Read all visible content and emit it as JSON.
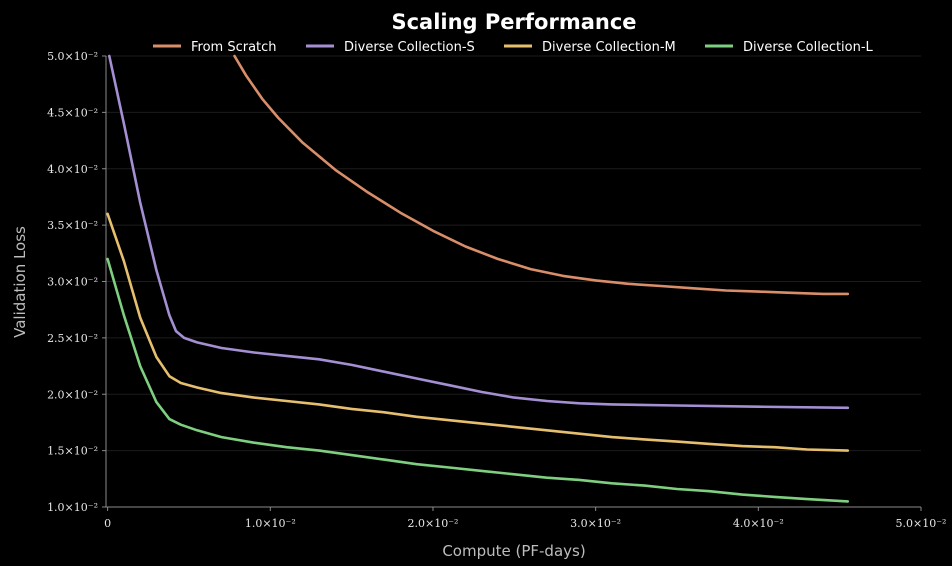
{
  "chart_data": {
    "type": "line",
    "title": "Scaling Performance",
    "xlabel": "Compute (PF-days)",
    "ylabel": "Validation Loss",
    "xlim": [
      -0.0001,
      0.05
    ],
    "ylim": [
      0.01,
      0.05
    ],
    "grid": true,
    "legend_position": "top",
    "x_ticks": [
      {
        "value": 0,
        "label": "0"
      },
      {
        "value": 0.01,
        "label": "1.0×10⁻²"
      },
      {
        "value": 0.02,
        "label": "2.0×10⁻²"
      },
      {
        "value": 0.03,
        "label": "3.0×10⁻²"
      },
      {
        "value": 0.04,
        "label": "4.0×10⁻²"
      },
      {
        "value": 0.05,
        "label": "5.0×10⁻²"
      }
    ],
    "y_ticks": [
      {
        "value": 0.01,
        "label": "1.0×10⁻²"
      },
      {
        "value": 0.015,
        "label": "1.5×10⁻²"
      },
      {
        "value": 0.02,
        "label": "2.0×10⁻²"
      },
      {
        "value": 0.025,
        "label": "2.5×10⁻²"
      },
      {
        "value": 0.03,
        "label": "3.0×10⁻²"
      },
      {
        "value": 0.035,
        "label": "3.5×10⁻²"
      },
      {
        "value": 0.04,
        "label": "4.0×10⁻²"
      },
      {
        "value": 0.045,
        "label": "4.5×10⁻²"
      },
      {
        "value": 0.05,
        "label": "5.0×10⁻²"
      }
    ],
    "series": [
      {
        "name": "From Scratch",
        "color": "#d98e6a",
        "x": [
          0.0078,
          0.0085,
          0.0095,
          0.0105,
          0.012,
          0.014,
          0.016,
          0.018,
          0.02,
          0.022,
          0.024,
          0.026,
          0.028,
          0.03,
          0.032,
          0.034,
          0.036,
          0.038,
          0.04,
          0.042,
          0.044,
          0.0455
        ],
        "y": [
          0.05,
          0.0483,
          0.0462,
          0.0445,
          0.0423,
          0.0399,
          0.0379,
          0.0361,
          0.0345,
          0.0331,
          0.032,
          0.0311,
          0.0305,
          0.0301,
          0.0298,
          0.0296,
          0.0294,
          0.0292,
          0.0291,
          0.029,
          0.0289,
          0.0289
        ]
      },
      {
        "name": "Diverse Collection-S",
        "color": "#a58fd3",
        "x": [
          0.0001,
          0.001,
          0.002,
          0.003,
          0.0038,
          0.0042,
          0.0047,
          0.0055,
          0.007,
          0.009,
          0.011,
          0.013,
          0.015,
          0.017,
          0.019,
          0.021,
          0.023,
          0.025,
          0.027,
          0.029,
          0.031,
          0.035,
          0.04,
          0.0455
        ],
        "y": [
          0.05,
          0.044,
          0.037,
          0.031,
          0.027,
          0.0256,
          0.025,
          0.0246,
          0.0241,
          0.0237,
          0.0234,
          0.0231,
          0.0226,
          0.022,
          0.0214,
          0.0208,
          0.0202,
          0.0197,
          0.0194,
          0.0192,
          0.0191,
          0.019,
          0.0189,
          0.0188
        ]
      },
      {
        "name": "Diverse Collection-M",
        "color": "#e6bf6e",
        "x": [
          0.0,
          0.001,
          0.002,
          0.003,
          0.0038,
          0.0045,
          0.0055,
          0.007,
          0.009,
          0.011,
          0.013,
          0.015,
          0.017,
          0.019,
          0.021,
          0.023,
          0.025,
          0.027,
          0.029,
          0.031,
          0.033,
          0.035,
          0.037,
          0.039,
          0.041,
          0.043,
          0.0455
        ],
        "y": [
          0.036,
          0.0318,
          0.0268,
          0.0233,
          0.0216,
          0.021,
          0.0206,
          0.0201,
          0.0197,
          0.0194,
          0.0191,
          0.0187,
          0.0184,
          0.018,
          0.0177,
          0.0174,
          0.0171,
          0.0168,
          0.0165,
          0.0162,
          0.016,
          0.0158,
          0.0156,
          0.0154,
          0.0153,
          0.0151,
          0.015
        ]
      },
      {
        "name": "Diverse Collection-L",
        "color": "#7fcf80",
        "x": [
          0.0,
          0.001,
          0.002,
          0.003,
          0.0038,
          0.0045,
          0.0055,
          0.007,
          0.009,
          0.011,
          0.013,
          0.015,
          0.017,
          0.019,
          0.021,
          0.023,
          0.025,
          0.027,
          0.029,
          0.031,
          0.033,
          0.035,
          0.037,
          0.039,
          0.041,
          0.043,
          0.0455
        ],
        "y": [
          0.032,
          0.027,
          0.0225,
          0.0193,
          0.0178,
          0.0173,
          0.0168,
          0.0162,
          0.0157,
          0.0153,
          0.015,
          0.0146,
          0.0142,
          0.0138,
          0.0135,
          0.0132,
          0.0129,
          0.0126,
          0.0124,
          0.0121,
          0.0119,
          0.0116,
          0.0114,
          0.0111,
          0.0109,
          0.0107,
          0.0105
        ]
      }
    ]
  }
}
